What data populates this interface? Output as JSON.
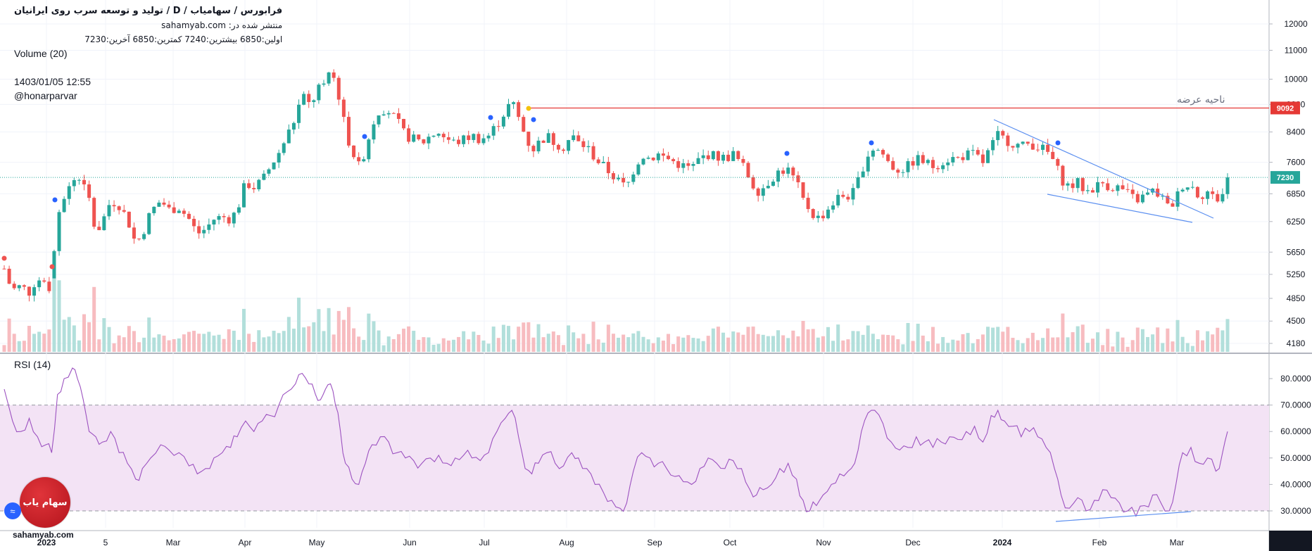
{
  "legend": {
    "title": "تولید و توسعه سرب روی ایرانیان / D / فرابورس / سهامیاب",
    "source": "منتشر شده در: sahamyab.com",
    "ohlc": "اولین:6850  بیشترین:7240  کمترین:6850  آخرین:7230",
    "volume_label": "Volume (20)",
    "datetime": "1403/01/05 12:55",
    "author": "@honarparvar"
  },
  "rsi_label": "RSI (14)",
  "annotation": "ناحیه عرضه",
  "logo_text": "سهام یاب",
  "site": "sahamyab.com",
  "colors": {
    "up": "#26a69a",
    "down": "#ef5350",
    "up_volume": "#b2dfdb",
    "down_volume": "#f7bcc0",
    "rsi_line": "#9c52c0",
    "rsi_band": "#f3e3f5",
    "resistance": "#e53935",
    "trendline": "#5b8ff0",
    "last_price": "#26a69a"
  },
  "chart_data": {
    "type": "candlestick",
    "price_axis": {
      "ticks": [
        12000,
        11000,
        10000,
        9200,
        8400,
        7600,
        6850,
        6250,
        5650,
        5250,
        4850,
        4500,
        4180
      ],
      "scale": "log"
    },
    "x_axis": {
      "ticks": [
        "2023",
        "5",
        "Mar",
        "Apr",
        "May",
        "Jun",
        "Jul",
        "Aug",
        "Sep",
        "Oct",
        "Nov",
        "Dec",
        "2024",
        "Feb",
        "Mar"
      ]
    },
    "levels": {
      "resistance": 9092,
      "last_price": 7230
    },
    "last_bar": {
      "open": 6850,
      "high": 7240,
      "low": 6850,
      "close": 7230
    },
    "close_path": [
      [
        0,
        5350
      ],
      [
        6,
        5100
      ],
      [
        12,
        5000
      ],
      [
        20,
        5050
      ],
      [
        30,
        4950
      ],
      [
        40,
        5200
      ],
      [
        50,
        5000
      ],
      [
        57,
        5050
      ],
      [
        64,
        6300
      ],
      [
        72,
        6800
      ],
      [
        82,
        7100
      ],
      [
        88,
        7300
      ],
      [
        95,
        7050
      ],
      [
        102,
        6700
      ],
      [
        110,
        6000
      ],
      [
        118,
        6250
      ],
      [
        128,
        6700
      ],
      [
        138,
        6600
      ],
      [
        148,
        6300
      ],
      [
        158,
        5800
      ],
      [
        166,
        6000
      ],
      [
        176,
        6450
      ],
      [
        188,
        6700
      ],
      [
        198,
        6500
      ],
      [
        210,
        6550
      ],
      [
        222,
        6300
      ],
      [
        232,
        6000
      ],
      [
        242,
        6100
      ],
      [
        252,
        6300
      ],
      [
        262,
        6350
      ],
      [
        272,
        6300
      ],
      [
        280,
        6500
      ],
      [
        290,
        7100
      ],
      [
        300,
        7000
      ],
      [
        310,
        7150
      ],
      [
        320,
        7500
      ],
      [
        330,
        7850
      ],
      [
        340,
        8300
      ],
      [
        350,
        8800
      ],
      [
        358,
        9500
      ],
      [
        366,
        9200
      ],
      [
        374,
        9450
      ],
      [
        380,
        9900
      ],
      [
        386,
        9600
      ],
      [
        392,
        10500
      ],
      [
        398,
        9800
      ],
      [
        404,
        9300
      ],
      [
        410,
        8400
      ],
      [
        418,
        7900
      ],
      [
        426,
        7500
      ],
      [
        434,
        7900
      ],
      [
        442,
        8600
      ],
      [
        452,
        9100
      ],
      [
        462,
        9000
      ],
      [
        472,
        8700
      ],
      [
        482,
        8300
      ],
      [
        492,
        8200
      ],
      [
        502,
        8100
      ],
      [
        512,
        8300
      ],
      [
        522,
        8400
      ],
      [
        532,
        8200
      ],
      [
        542,
        8100
      ],
      [
        552,
        8200
      ],
      [
        562,
        8300
      ],
      [
        572,
        8200
      ],
      [
        582,
        8300
      ],
      [
        592,
        8600
      ],
      [
        602,
        9000
      ],
      [
        610,
        9300
      ],
      [
        618,
        8800
      ],
      [
        626,
        8300
      ],
      [
        634,
        7900
      ],
      [
        642,
        8100
      ],
      [
        652,
        8300
      ],
      [
        662,
        8100
      ],
      [
        672,
        8000
      ],
      [
        682,
        8300
      ],
      [
        690,
        8100
      ],
      [
        700,
        8000
      ],
      [
        710,
        7700
      ],
      [
        720,
        7500
      ],
      [
        730,
        7300
      ],
      [
        740,
        7100
      ],
      [
        748,
        7000
      ],
      [
        756,
        7400
      ],
      [
        766,
        7800
      ],
      [
        776,
        7700
      ],
      [
        786,
        7800
      ],
      [
        796,
        7700
      ],
      [
        806,
        7600
      ],
      [
        816,
        7500
      ],
      [
        826,
        7450
      ],
      [
        836,
        7700
      ],
      [
        846,
        7800
      ],
      [
        856,
        7750
      ],
      [
        866,
        7700
      ],
      [
        876,
        7800
      ],
      [
        886,
        7550
      ],
      [
        896,
        7200
      ],
      [
        904,
        6900
      ],
      [
        912,
        7000
      ],
      [
        922,
        7200
      ],
      [
        932,
        7400
      ],
      [
        942,
        7400
      ],
      [
        952,
        7100
      ],
      [
        960,
        6700
      ],
      [
        968,
        6500
      ],
      [
        976,
        6300
      ],
      [
        984,
        6400
      ],
      [
        994,
        6600
      ],
      [
        1004,
        6800
      ],
      [
        1014,
        6800
      ],
      [
        1022,
        6900
      ],
      [
        1030,
        7400
      ],
      [
        1038,
        7800
      ],
      [
        1046,
        8000
      ],
      [
        1056,
        7800
      ],
      [
        1066,
        7500
      ],
      [
        1076,
        7400
      ],
      [
        1086,
        7500
      ],
      [
        1096,
        7700
      ],
      [
        1106,
        7600
      ],
      [
        1116,
        7500
      ],
      [
        1126,
        7600
      ],
      [
        1136,
        7700
      ],
      [
        1146,
        7700
      ],
      [
        1156,
        7800
      ],
      [
        1166,
        7800
      ],
      [
        1176,
        7600
      ],
      [
        1186,
        8000
      ],
      [
        1194,
        8300
      ],
      [
        1202,
        8200
      ],
      [
        1212,
        8100
      ],
      [
        1222,
        8000
      ],
      [
        1232,
        8100
      ],
      [
        1242,
        8000
      ],
      [
        1252,
        7900
      ],
      [
        1262,
        7600
      ],
      [
        1270,
        7200
      ],
      [
        1280,
        7000
      ],
      [
        1290,
        7100
      ],
      [
        1300,
        6900
      ],
      [
        1310,
        7000
      ],
      [
        1320,
        7100
      ],
      [
        1330,
        7000
      ],
      [
        1340,
        7000
      ],
      [
        1350,
        6850
      ],
      [
        1360,
        6700
      ],
      [
        1370,
        6800
      ],
      [
        1380,
        6900
      ],
      [
        1390,
        6800
      ],
      [
        1400,
        6500
      ],
      [
        1408,
        6750
      ],
      [
        1416,
        7050
      ],
      [
        1426,
        7050
      ],
      [
        1436,
        6800
      ],
      [
        1446,
        6900
      ],
      [
        1456,
        6700
      ],
      [
        1464,
        6850
      ],
      [
        1470,
        7230
      ]
    ],
    "rsi": {
      "band": [
        30,
        70
      ],
      "ticks": [
        80,
        70,
        60,
        50,
        40,
        30
      ],
      "range": [
        23,
        86
      ],
      "values": [
        [
          0,
          76
        ],
        [
          10,
          64
        ],
        [
          20,
          60
        ],
        [
          30,
          65
        ],
        [
          40,
          58
        ],
        [
          50,
          55
        ],
        [
          57,
          52
        ],
        [
          64,
          74
        ],
        [
          72,
          80
        ],
        [
          82,
          84
        ],
        [
          88,
          80
        ],
        [
          95,
          72
        ],
        [
          102,
          60
        ],
        [
          110,
          58
        ],
        [
          118,
          56
        ],
        [
          128,
          60
        ],
        [
          138,
          52
        ],
        [
          148,
          48
        ],
        [
          158,
          42
        ],
        [
          166,
          46
        ],
        [
          176,
          50
        ],
        [
          188,
          55
        ],
        [
          198,
          53
        ],
        [
          210,
          52
        ],
        [
          222,
          47
        ],
        [
          232,
          44
        ],
        [
          242,
          46
        ],
        [
          252,
          50
        ],
        [
          262,
          52
        ],
        [
          272,
          54
        ],
        [
          280,
          58
        ],
        [
          290,
          64
        ],
        [
          300,
          60
        ],
        [
          310,
          64
        ],
        [
          320,
          66
        ],
        [
          330,
          70
        ],
        [
          340,
          75
        ],
        [
          350,
          78
        ],
        [
          358,
          82
        ],
        [
          366,
          78
        ],
        [
          374,
          74
        ],
        [
          380,
          72
        ],
        [
          386,
          76
        ],
        [
          392,
          78
        ],
        [
          398,
          70
        ],
        [
          404,
          60
        ],
        [
          410,
          48
        ],
        [
          418,
          42
        ],
        [
          426,
          40
        ],
        [
          434,
          48
        ],
        [
          442,
          55
        ],
        [
          452,
          58
        ],
        [
          462,
          56
        ],
        [
          472,
          52
        ],
        [
          482,
          50
        ],
        [
          492,
          49
        ],
        [
          502,
          48
        ],
        [
          512,
          50
        ],
        [
          522,
          51
        ],
        [
          532,
          48
        ],
        [
          542,
          50
        ],
        [
          552,
          51
        ],
        [
          562,
          50
        ],
        [
          572,
          49
        ],
        [
          582,
          52
        ],
        [
          592,
          60
        ],
        [
          602,
          65
        ],
        [
          610,
          68
        ],
        [
          618,
          58
        ],
        [
          626,
          46
        ],
        [
          634,
          44
        ],
        [
          642,
          48
        ],
        [
          652,
          52
        ],
        [
          662,
          48
        ],
        [
          672,
          47
        ],
        [
          682,
          52
        ],
        [
          690,
          50
        ],
        [
          700,
          46
        ],
        [
          710,
          40
        ],
        [
          720,
          37
        ],
        [
          730,
          34
        ],
        [
          740,
          31
        ],
        [
          748,
          33
        ],
        [
          756,
          45
        ],
        [
          766,
          52
        ],
        [
          776,
          50
        ],
        [
          786,
          48
        ],
        [
          796,
          46
        ],
        [
          806,
          43
        ],
        [
          816,
          41
        ],
        [
          826,
          40
        ],
        [
          836,
          46
        ],
        [
          846,
          50
        ],
        [
          856,
          48
        ],
        [
          866,
          46
        ],
        [
          876,
          49
        ],
        [
          886,
          46
        ],
        [
          896,
          38
        ],
        [
          904,
          36
        ],
        [
          912,
          38
        ],
        [
          922,
          40
        ],
        [
          932,
          46
        ],
        [
          942,
          48
        ],
        [
          952,
          42
        ],
        [
          960,
          34
        ],
        [
          968,
          30
        ],
        [
          976,
          32
        ],
        [
          984,
          36
        ],
        [
          994,
          40
        ],
        [
          1004,
          44
        ],
        [
          1014,
          45
        ],
        [
          1022,
          48
        ],
        [
          1030,
          60
        ],
        [
          1038,
          67
        ],
        [
          1046,
          68
        ],
        [
          1056,
          63
        ],
        [
          1066,
          56
        ],
        [
          1076,
          53
        ],
        [
          1086,
          54
        ],
        [
          1096,
          58
        ],
        [
          1106,
          56
        ],
        [
          1116,
          54
        ],
        [
          1126,
          56
        ],
        [
          1136,
          58
        ],
        [
          1146,
          57
        ],
        [
          1156,
          60
        ],
        [
          1166,
          62
        ],
        [
          1176,
          56
        ],
        [
          1186,
          66
        ],
        [
          1194,
          68
        ],
        [
          1202,
          64
        ],
        [
          1212,
          62
        ],
        [
          1222,
          58
        ],
        [
          1232,
          60
        ],
        [
          1242,
          58
        ],
        [
          1252,
          54
        ],
        [
          1262,
          46
        ],
        [
          1270,
          36
        ],
        [
          1280,
          31
        ],
        [
          1290,
          35
        ],
        [
          1300,
          30
        ],
        [
          1310,
          34
        ],
        [
          1320,
          38
        ],
        [
          1330,
          35
        ],
        [
          1340,
          33
        ],
        [
          1350,
          30
        ],
        [
          1360,
          28
        ],
        [
          1370,
          32
        ],
        [
          1380,
          36
        ],
        [
          1390,
          33
        ],
        [
          1400,
          30
        ],
        [
          1408,
          40
        ],
        [
          1416,
          52
        ],
        [
          1426,
          54
        ],
        [
          1436,
          48
        ],
        [
          1446,
          50
        ],
        [
          1456,
          45
        ],
        [
          1464,
          52
        ],
        [
          1470,
          60
        ]
      ]
    },
    "title": "تولید و توسعه سرب روی ایرانیان / D / فرابورس / سهامیاب"
  }
}
